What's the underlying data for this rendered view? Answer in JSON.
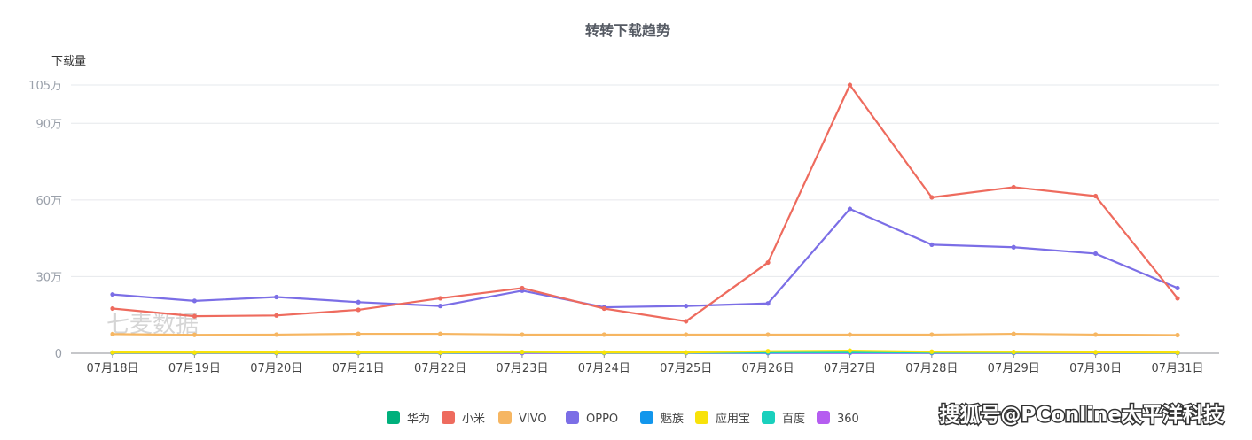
{
  "chart_data": {
    "type": "line",
    "title": "转转下载趋势",
    "ylabel": "下载量",
    "xlabel": "",
    "categories": [
      "07月18日",
      "07月19日",
      "07月20日",
      "07月21日",
      "07月22日",
      "07月23日",
      "07月24日",
      "07月25日",
      "07月26日",
      "07月27日",
      "07月28日",
      "07月29日",
      "07月30日",
      "07月31日"
    ],
    "ylim": [
      0,
      105
    ],
    "yticks": [
      {
        "value": 0,
        "label": "0"
      },
      {
        "value": 30,
        "label": "30万"
      },
      {
        "value": 60,
        "label": "60万"
      },
      {
        "value": 90,
        "label": "90万"
      },
      {
        "value": 105,
        "label": "105万"
      }
    ],
    "y_unit": "万",
    "grid": true,
    "legend_position": "bottom",
    "series": [
      {
        "name": "华为",
        "color": "#00b07c",
        "values": [
          0.2,
          0.2,
          0.2,
          0.2,
          0.2,
          0.2,
          0.2,
          0.2,
          0.2,
          0.2,
          0.2,
          0.2,
          0.2,
          0.2
        ]
      },
      {
        "name": "小米",
        "color": "#ee6b5e",
        "values": [
          17.5,
          14.5,
          14.8,
          17,
          21.5,
          25.5,
          17.5,
          12.5,
          35.5,
          105,
          61,
          65,
          61.5,
          21.5
        ]
      },
      {
        "name": "VIVO",
        "color": "#f6b662",
        "values": [
          7.5,
          7.2,
          7.3,
          7.6,
          7.6,
          7.3,
          7.3,
          7.3,
          7.3,
          7.3,
          7.3,
          7.6,
          7.3,
          7.1
        ]
      },
      {
        "name": "OPPO",
        "color": "#7b6ee6",
        "values": [
          23,
          20.5,
          22,
          20,
          18.5,
          24.5,
          18,
          18.5,
          19.5,
          56.5,
          42.5,
          41.5,
          39,
          25.5
        ]
      },
      {
        "name": "魅族",
        "color": "#1296ec",
        "values": [
          0.1,
          0.1,
          0.1,
          0.1,
          0.1,
          0.1,
          0.1,
          0.1,
          0.1,
          0.1,
          0.1,
          0.1,
          0.1,
          0.1
        ]
      },
      {
        "name": "应用宝",
        "color": "#f8e20a",
        "values": [
          0.3,
          0.3,
          0.3,
          0.3,
          0.3,
          0.5,
          0.3,
          0.3,
          0.8,
          1.0,
          0.6,
          0.5,
          0.4,
          0.3
        ]
      },
      {
        "name": "百度",
        "color": "#1ad0bd",
        "values": [
          0.2,
          0.2,
          0.2,
          0.2,
          0.2,
          0.4,
          0.2,
          0.2,
          0.3,
          0.4,
          0.3,
          0.3,
          0.3,
          0.2
        ]
      },
      {
        "name": "360",
        "color": "#b55df0",
        "values": [
          0.1,
          0.1,
          0.1,
          0.1,
          0.1,
          0.1,
          0.1,
          0.1,
          0.1,
          0.1,
          0.1,
          0.1,
          0.1,
          0.1
        ]
      }
    ]
  },
  "watermark": "七麦数据",
  "credit": "搜狐号@PConline太平洋科技"
}
